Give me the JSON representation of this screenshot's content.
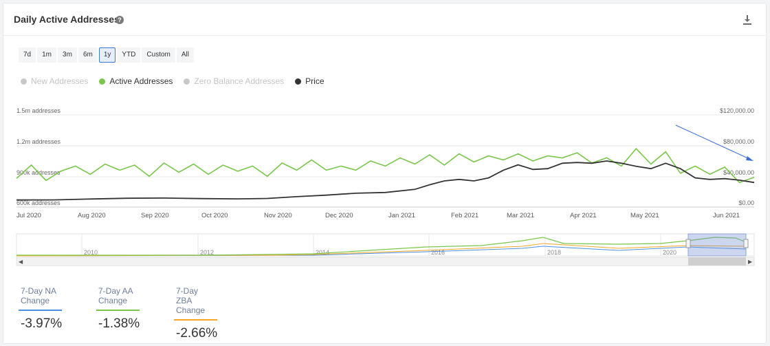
{
  "header": {
    "title": "Daily Active Addresses",
    "help_icon": "question-circle-icon",
    "download_icon": "download-icon"
  },
  "range_buttons": [
    {
      "label": "7d",
      "active": false
    },
    {
      "label": "1m",
      "active": false
    },
    {
      "label": "3m",
      "active": false
    },
    {
      "label": "6m",
      "active": false
    },
    {
      "label": "1y",
      "active": true
    },
    {
      "label": "YTD",
      "active": false
    },
    {
      "label": "Custom",
      "active": false
    },
    {
      "label": "All",
      "active": false
    }
  ],
  "legend": [
    {
      "label": "New Addresses",
      "color": "#c8c8c8",
      "enabled": false
    },
    {
      "label": "Active Addresses",
      "color": "#79c64a",
      "enabled": true
    },
    {
      "label": "Zero Balance Addresses",
      "color": "#c8c8c8",
      "enabled": false
    },
    {
      "label": "Price",
      "color": "#333333",
      "enabled": true
    }
  ],
  "chart_data": {
    "type": "line",
    "left_axis": {
      "ticks": [
        "1.5m addresses",
        "1.2m addresses",
        "900k addresses",
        "600k addresses"
      ],
      "values": [
        1500000,
        1200000,
        900000,
        600000
      ]
    },
    "right_axis": {
      "ticks": [
        "$120,000.00",
        "$80,000.00",
        "$40,000.00",
        "$0.00"
      ],
      "values": [
        120000,
        80000,
        40000,
        0
      ]
    },
    "x_labels": [
      "Jul 2020",
      "Aug 2020",
      "Sep 2020",
      "Oct 2020",
      "Nov 2020",
      "Dec 2020",
      "Jan 2021",
      "Feb 2021",
      "Mar 2021",
      "Apr 2021",
      "May 2021",
      "Jun 2021"
    ],
    "x_range": [
      "2020-06-24",
      "2021-06-24"
    ],
    "series": [
      {
        "name": "Active Addresses",
        "color": "#79c64a",
        "axis": "left",
        "values": [
          [
            0.0,
            880000
          ],
          [
            0.02,
            1010000
          ],
          [
            0.04,
            860000
          ],
          [
            0.06,
            950000
          ],
          [
            0.08,
            1000000
          ],
          [
            0.1,
            920000
          ],
          [
            0.12,
            1020000
          ],
          [
            0.14,
            960000
          ],
          [
            0.16,
            1010000
          ],
          [
            0.18,
            900000
          ],
          [
            0.2,
            1030000
          ],
          [
            0.22,
            940000
          ],
          [
            0.24,
            1020000
          ],
          [
            0.26,
            920000
          ],
          [
            0.28,
            1010000
          ],
          [
            0.3,
            950000
          ],
          [
            0.32,
            1000000
          ],
          [
            0.34,
            900000
          ],
          [
            0.36,
            1030000
          ],
          [
            0.38,
            960000
          ],
          [
            0.4,
            1060000
          ],
          [
            0.42,
            960000
          ],
          [
            0.44,
            1000000
          ],
          [
            0.46,
            960000
          ],
          [
            0.48,
            1050000
          ],
          [
            0.5,
            1000000
          ],
          [
            0.52,
            1080000
          ],
          [
            0.54,
            1020000
          ],
          [
            0.56,
            1110000
          ],
          [
            0.58,
            1010000
          ],
          [
            0.6,
            1120000
          ],
          [
            0.62,
            1040000
          ],
          [
            0.64,
            1100000
          ],
          [
            0.66,
            1060000
          ],
          [
            0.68,
            1120000
          ],
          [
            0.7,
            1050000
          ],
          [
            0.72,
            1100000
          ],
          [
            0.74,
            1080000
          ],
          [
            0.76,
            1130000
          ],
          [
            0.78,
            1030000
          ],
          [
            0.8,
            1080000
          ],
          [
            0.82,
            1000000
          ],
          [
            0.84,
            1170000
          ],
          [
            0.86,
            1020000
          ],
          [
            0.88,
            1140000
          ],
          [
            0.9,
            930000
          ],
          [
            0.92,
            1000000
          ],
          [
            0.94,
            920000
          ],
          [
            0.96,
            990000
          ],
          [
            0.98,
            840000
          ],
          [
            1.0,
            890000
          ]
        ]
      },
      {
        "name": "Price",
        "color": "#333333",
        "axis": "right",
        "values": [
          [
            0.0,
            9200
          ],
          [
            0.05,
            9300
          ],
          [
            0.1,
            10500
          ],
          [
            0.15,
            11500
          ],
          [
            0.2,
            11700
          ],
          [
            0.25,
            11000
          ],
          [
            0.3,
            10700
          ],
          [
            0.34,
            11200
          ],
          [
            0.38,
            13500
          ],
          [
            0.42,
            15500
          ],
          [
            0.46,
            18000
          ],
          [
            0.5,
            19000
          ],
          [
            0.54,
            23000
          ],
          [
            0.56,
            29000
          ],
          [
            0.58,
            34000
          ],
          [
            0.6,
            36000
          ],
          [
            0.62,
            34000
          ],
          [
            0.64,
            38000
          ],
          [
            0.66,
            48000
          ],
          [
            0.68,
            55000
          ],
          [
            0.7,
            49000
          ],
          [
            0.72,
            50000
          ],
          [
            0.74,
            57000
          ],
          [
            0.76,
            58000
          ],
          [
            0.78,
            57000
          ],
          [
            0.8,
            60000
          ],
          [
            0.82,
            57000
          ],
          [
            0.84,
            53000
          ],
          [
            0.86,
            50000
          ],
          [
            0.88,
            57000
          ],
          [
            0.9,
            50000
          ],
          [
            0.92,
            38000
          ],
          [
            0.94,
            36000
          ],
          [
            0.96,
            37000
          ],
          [
            0.98,
            35000
          ],
          [
            1.0,
            32000
          ]
        ]
      }
    ]
  },
  "navigator": {
    "year_labels": [
      "2010",
      "2012",
      "2014",
      "2016",
      "2018",
      "2020"
    ]
  },
  "stats": [
    {
      "label": "7-Day NA Change",
      "value": "-3.97%",
      "color": "#4a90e2"
    },
    {
      "label": "7-Day AA Change",
      "value": "-1.38%",
      "color": "#79c64a"
    },
    {
      "label": "7-Day ZBA Change",
      "value": "-2.66%",
      "color": "#f5a623"
    }
  ]
}
